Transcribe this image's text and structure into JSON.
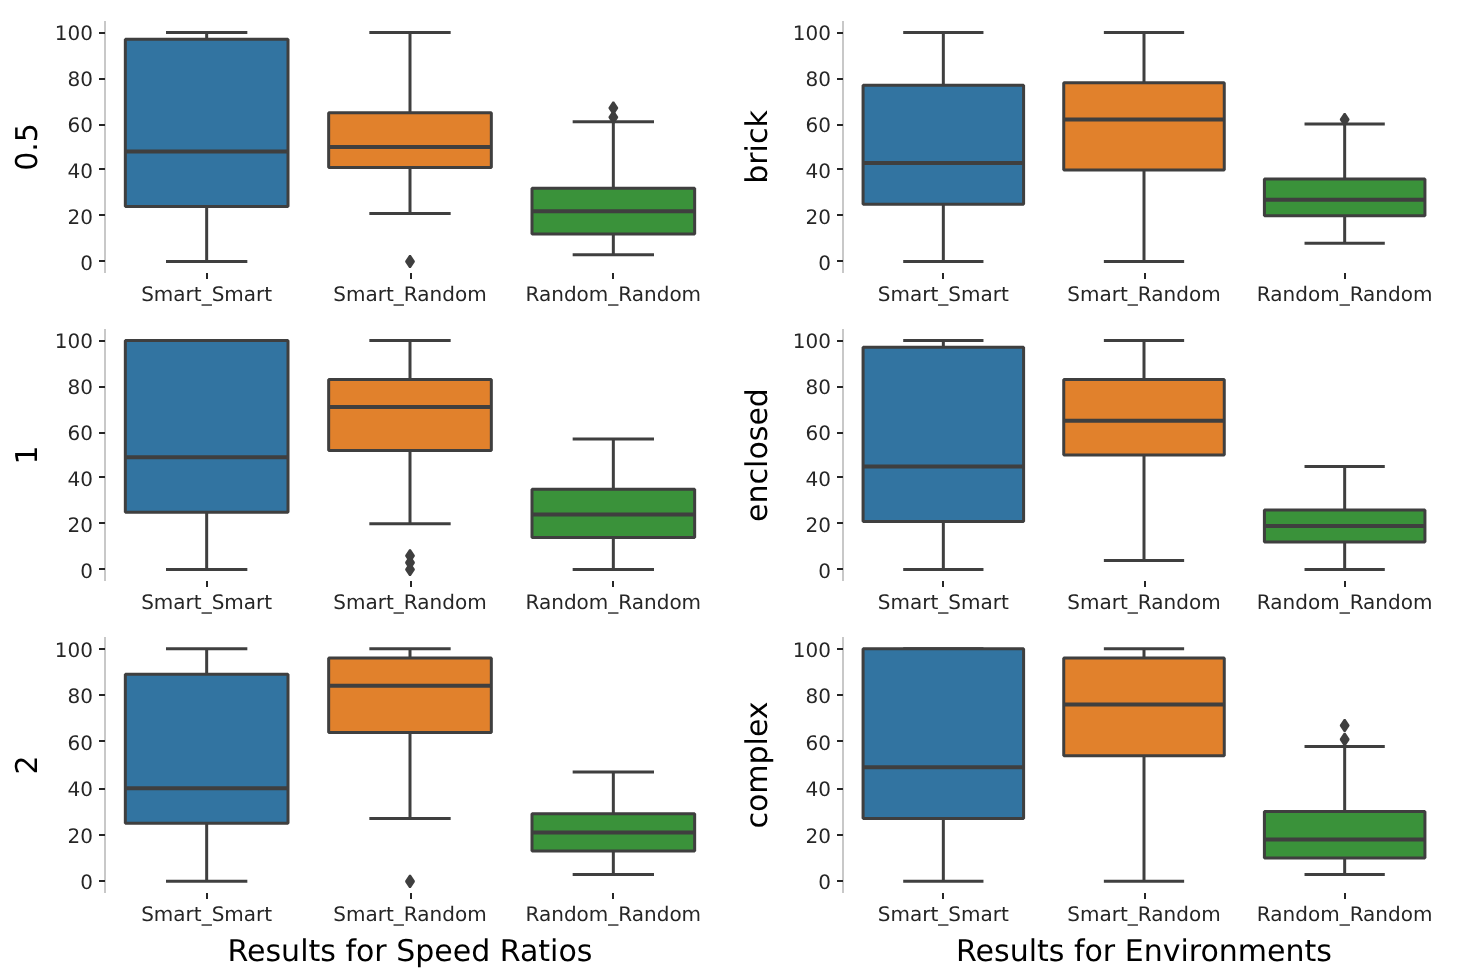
{
  "chart_data": [
    {
      "type": "box",
      "ylabel": "0.5",
      "categories": [
        "Smart_Smart",
        "Smart_Random",
        "Random_Random"
      ],
      "colors": [
        "#3274a1",
        "#e1812c",
        "#3a923a"
      ],
      "marker": "diamond",
      "grid": false,
      "ylim": [
        -5,
        105
      ],
      "yticks": [
        0,
        20,
        40,
        60,
        80,
        100
      ],
      "boxes": [
        {
          "low": 0,
          "q1": 24,
          "median": 48,
          "q3": 97,
          "high": 100
        },
        {
          "low": 21,
          "q1": 41,
          "median": 50,
          "q3": 65,
          "high": 100,
          "outliers": [
            0
          ]
        },
        {
          "low": 3,
          "q1": 12,
          "median": 22,
          "q3": 32,
          "high": 61,
          "outliers": [
            63,
            67
          ]
        }
      ]
    },
    {
      "type": "box",
      "ylabel": "brick",
      "categories": [
        "Smart_Smart",
        "Smart_Random",
        "Random_Random"
      ],
      "colors": [
        "#3274a1",
        "#e1812c",
        "#3a923a"
      ],
      "marker": "diamond",
      "grid": false,
      "ylim": [
        -5,
        105
      ],
      "yticks": [
        0,
        20,
        40,
        60,
        80,
        100
      ],
      "boxes": [
        {
          "low": 0,
          "q1": 25,
          "median": 43,
          "q3": 77,
          "high": 100
        },
        {
          "low": 0,
          "q1": 40,
          "median": 62,
          "q3": 78,
          "high": 100
        },
        {
          "low": 8,
          "q1": 20,
          "median": 27,
          "q3": 36,
          "high": 60,
          "outliers": [
            62
          ]
        }
      ]
    },
    {
      "type": "box",
      "ylabel": "1",
      "categories": [
        "Smart_Smart",
        "Smart_Random",
        "Random_Random"
      ],
      "colors": [
        "#3274a1",
        "#e1812c",
        "#3a923a"
      ],
      "marker": "diamond",
      "grid": false,
      "ylim": [
        -5,
        105
      ],
      "yticks": [
        0,
        20,
        40,
        60,
        80,
        100
      ],
      "boxes": [
        {
          "low": 0,
          "q1": 25,
          "median": 49,
          "q3": 100,
          "high": 100
        },
        {
          "low": 20,
          "q1": 52,
          "median": 71,
          "q3": 83,
          "high": 100,
          "outliers": [
            0,
            3,
            6
          ]
        },
        {
          "low": 0,
          "q1": 14,
          "median": 24,
          "q3": 35,
          "high": 57
        }
      ]
    },
    {
      "type": "box",
      "ylabel": "enclosed",
      "categories": [
        "Smart_Smart",
        "Smart_Random",
        "Random_Random"
      ],
      "colors": [
        "#3274a1",
        "#e1812c",
        "#3a923a"
      ],
      "marker": "diamond",
      "grid": false,
      "ylim": [
        -5,
        105
      ],
      "yticks": [
        0,
        20,
        40,
        60,
        80,
        100
      ],
      "boxes": [
        {
          "low": 0,
          "q1": 21,
          "median": 45,
          "q3": 97,
          "high": 100
        },
        {
          "low": 4,
          "q1": 50,
          "median": 65,
          "q3": 83,
          "high": 100
        },
        {
          "low": 0,
          "q1": 12,
          "median": 19,
          "q3": 26,
          "high": 45
        }
      ]
    },
    {
      "type": "box",
      "ylabel": "2",
      "xlabel": "Results for Speed Ratios",
      "categories": [
        "Smart_Smart",
        "Smart_Random",
        "Random_Random"
      ],
      "colors": [
        "#3274a1",
        "#e1812c",
        "#3a923a"
      ],
      "marker": "diamond",
      "grid": false,
      "ylim": [
        -5,
        105
      ],
      "yticks": [
        0,
        20,
        40,
        60,
        80,
        100
      ],
      "boxes": [
        {
          "low": 0,
          "q1": 25,
          "median": 40,
          "q3": 89,
          "high": 100
        },
        {
          "low": 27,
          "q1": 64,
          "median": 84,
          "q3": 96,
          "high": 100,
          "outliers": [
            0
          ]
        },
        {
          "low": 3,
          "q1": 13,
          "median": 21,
          "q3": 29,
          "high": 47
        }
      ]
    },
    {
      "type": "box",
      "ylabel": "complex",
      "xlabel": "Results for Environments",
      "categories": [
        "Smart_Smart",
        "Smart_Random",
        "Random_Random"
      ],
      "colors": [
        "#3274a1",
        "#e1812c",
        "#3a923a"
      ],
      "marker": "diamond",
      "grid": false,
      "ylim": [
        -5,
        105
      ],
      "yticks": [
        0,
        20,
        40,
        60,
        80,
        100
      ],
      "boxes": [
        {
          "low": 0,
          "q1": 27,
          "median": 49,
          "q3": 100,
          "high": 100
        },
        {
          "low": 0,
          "q1": 54,
          "median": 76,
          "q3": 96,
          "high": 100
        },
        {
          "low": 3,
          "q1": 10,
          "median": 18,
          "q3": 30,
          "high": 58,
          "outliers": [
            61,
            67
          ]
        }
      ]
    }
  ]
}
